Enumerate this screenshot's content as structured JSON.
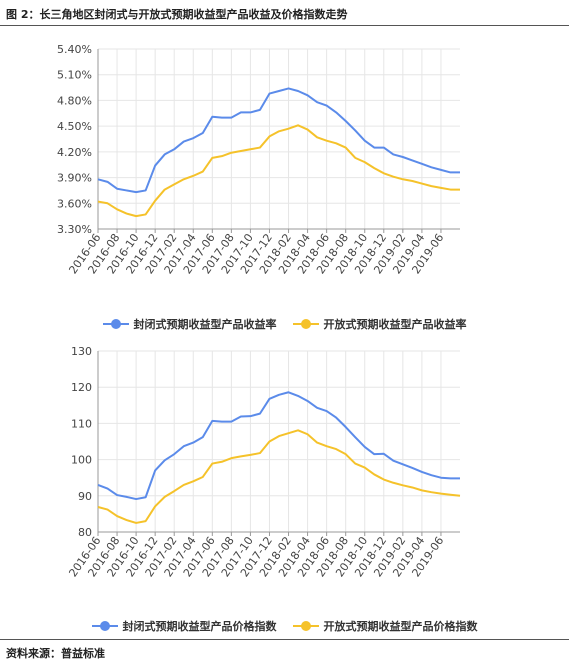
{
  "figure": {
    "title": "图 2：长三角地区封闭式与开放式预期收益型产品收益及价格指数走势",
    "source": "资料来源：普益标准"
  },
  "colors": {
    "blue": "#5B8BEA",
    "yellow": "#F5C22A",
    "axis": "#999999",
    "grid": "#e6e6e6"
  },
  "chart_data": [
    {
      "type": "line",
      "tick_labels": [
        "2016-06",
        "2016-08",
        "2016-10",
        "2016-12",
        "2017-02",
        "2017-04",
        "2017-06",
        "2017-08",
        "2017-10",
        "2017-12",
        "2018-02",
        "2018-04",
        "2018-06",
        "2018-08",
        "2018-10",
        "2018-12",
        "2019-02",
        "2019-04",
        "2019-06"
      ],
      "y_ticks": [
        "5.40%",
        "5.10%",
        "4.80%",
        "4.50%",
        "4.20%",
        "3.90%",
        "3.60%",
        "3.30%"
      ],
      "ylim": [
        3.3,
        5.4
      ],
      "grid": true,
      "legend_position": "bottom",
      "series": [
        {
          "name": "封闭式预期收益型产品收益率",
          "color": "#5B8BEA",
          "values": [
            3.88,
            3.85,
            3.77,
            3.75,
            3.73,
            3.75,
            4.04,
            4.17,
            4.23,
            4.32,
            4.36,
            4.42,
            4.61,
            4.6,
            4.6,
            4.66,
            4.66,
            4.69,
            4.88,
            4.91,
            4.94,
            4.91,
            4.86,
            4.78,
            4.74,
            4.66,
            4.56,
            4.45,
            4.33,
            4.25,
            4.25,
            4.17,
            4.14,
            4.1,
            4.06,
            4.02,
            3.99,
            3.96,
            3.96
          ]
        },
        {
          "name": "开放式预期收益型产品收益率",
          "color": "#F5C22A",
          "values": [
            3.62,
            3.6,
            3.53,
            3.48,
            3.45,
            3.47,
            3.63,
            3.76,
            3.82,
            3.88,
            3.92,
            3.97,
            4.13,
            4.15,
            4.19,
            4.21,
            4.23,
            4.25,
            4.38,
            4.44,
            4.47,
            4.51,
            4.46,
            4.37,
            4.33,
            4.3,
            4.25,
            4.13,
            4.08,
            4.01,
            3.95,
            3.91,
            3.88,
            3.86,
            3.83,
            3.8,
            3.78,
            3.76,
            3.76
          ]
        }
      ]
    },
    {
      "type": "line",
      "tick_labels": [
        "2016-06",
        "2016-08",
        "2016-10",
        "2016-12",
        "2017-02",
        "2017-04",
        "2017-06",
        "2017-08",
        "2017-10",
        "2017-12",
        "2018-02",
        "2018-04",
        "2018-06",
        "2018-08",
        "2018-10",
        "2018-12",
        "2019-02",
        "2019-04",
        "2019-06"
      ],
      "y_ticks": [
        "130",
        "120",
        "110",
        "100",
        "90",
        "80"
      ],
      "ylim": [
        80,
        130
      ],
      "grid": true,
      "legend_position": "bottom",
      "series": [
        {
          "name": "封闭式预期收益型产品价格指数",
          "color": "#5B8BEA",
          "values": [
            93,
            92,
            90.2,
            89.7,
            89.1,
            89.6,
            97,
            99.8,
            101.5,
            103.7,
            104.7,
            106.2,
            110.7,
            110.5,
            110.5,
            111.9,
            112.0,
            112.7,
            116.8,
            117.9,
            118.6,
            117.6,
            116.2,
            114.3,
            113.4,
            111.6,
            109.0,
            106.2,
            103.5,
            101.5,
            101.6,
            99.7,
            98.7,
            97.7,
            96.6,
            95.7,
            95.0,
            94.8,
            94.8
          ]
        },
        {
          "name": "开放式预期收益型产品价格指数",
          "color": "#F5C22A",
          "values": [
            86.9,
            86.2,
            84.4,
            83.3,
            82.5,
            83.0,
            87.1,
            89.7,
            91.3,
            93.0,
            94.0,
            95.2,
            98.9,
            99.4,
            100.4,
            100.9,
            101.3,
            101.8,
            105.0,
            106.5,
            107.3,
            108.1,
            107.0,
            104.7,
            103.7,
            102.9,
            101.5,
            98.9,
            97.8,
            95.9,
            94.5,
            93.6,
            92.9,
            92.3,
            91.5,
            91.0,
            90.6,
            90.3,
            90.0
          ]
        }
      ]
    }
  ]
}
